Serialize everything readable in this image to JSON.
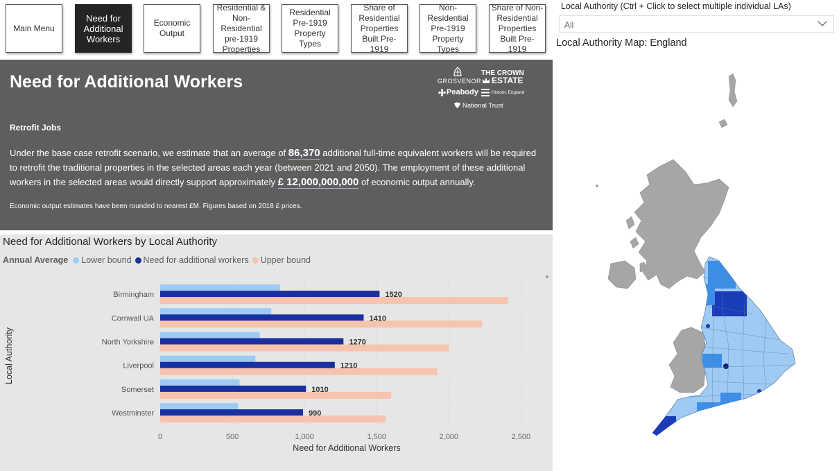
{
  "nav": {
    "buttons": [
      {
        "label": "Main Menu",
        "active": false
      },
      {
        "label": "Need for Additional Workers",
        "active": true
      },
      {
        "label": "Economic Output",
        "active": false
      },
      {
        "label": "Residential & Non-Residential pre-1919 Properties",
        "active": false
      },
      {
        "label": "Residential Pre-1919 Property Types",
        "active": false
      },
      {
        "label": "Share of Residential Properties Built Pre-1919",
        "active": false
      },
      {
        "label": "Non-Residential Pre-1919 Property Types",
        "active": false
      },
      {
        "label": "Share of Non-Residential Properties Built Pre-1919",
        "active": false
      }
    ]
  },
  "hero": {
    "title": "Need for Additional Workers",
    "retrofit_heading": "Retrofit Jobs",
    "para_part1": "Under the base case retrofit scenario, we estimate that an average of ",
    "workers_value": "86,370",
    "para_part2": " additional full-time equivalent workers will be required to retrofit the traditional properties in the selected areas each year (between 2021 and 2050). The employment of these additional workers in the selected areas would directly support approximately ",
    "output_value": "£ 12,000,000,000",
    "para_part3": " of economic output annually.",
    "note": "Economic output estimates have been rounded to nearest £M. Figures based on 2018 £ prices."
  },
  "logos": {
    "grosvenor": "GROSVENOR",
    "crown_line1": "THE CROWN",
    "crown_line2": "ESTATE",
    "peabody": "Peabody",
    "historic": "Historic England",
    "national_trust": "National Trust"
  },
  "chart": {
    "title": "Need for Additional Workers by Local Authority",
    "legend_title": "Annual Average",
    "legend": [
      {
        "name": "Lower bound",
        "color": "#9ecbf5"
      },
      {
        "name": "Need for additional workers",
        "color": "#1a2fa0"
      },
      {
        "name": "Upper bound",
        "color": "#f6c4ae"
      }
    ]
  },
  "chart_data": {
    "type": "bar",
    "orientation": "horizontal",
    "title": "Need for Additional Workers by Local Authority",
    "categories": [
      "Birmingham",
      "Cornwall UA",
      "North Yorkshire",
      "Liverpool",
      "Somerset",
      "Westminster"
    ],
    "series": [
      {
        "name": "Lower bound",
        "values": [
          830,
          770,
          690,
          660,
          550,
          540
        ]
      },
      {
        "name": "Need for additional workers",
        "values": [
          1520,
          1410,
          1270,
          1210,
          1010,
          990
        ]
      },
      {
        "name": "Upper bound",
        "values": [
          2410,
          2230,
          2000,
          1920,
          1600,
          1560
        ]
      }
    ],
    "data_labels": [
      "1520",
      "1410",
      "1270",
      "1210",
      "1010",
      "990"
    ],
    "xlabel": "Need for Additional Workers",
    "ylabel": "Local Authority",
    "xlim": [
      0,
      2700
    ],
    "xticks": [
      0,
      500,
      1000,
      1500,
      2000,
      2500
    ],
    "xtick_labels": [
      "0",
      "500",
      "1,000",
      "1,500",
      "2,000",
      "2,500"
    ],
    "grid": true,
    "legend_position": "top-left"
  },
  "filter": {
    "label": "Local Authority (Ctrl + Click to select multiple individual LAs)",
    "value": "All"
  },
  "map": {
    "title": "Local Authority Map: England",
    "colors": {
      "other": "#a6a6a6",
      "light": "#9fcaf2",
      "medium": "#3d8ee6",
      "dark": "#1a3cb8",
      "darkest": "#0d1f7a"
    }
  }
}
